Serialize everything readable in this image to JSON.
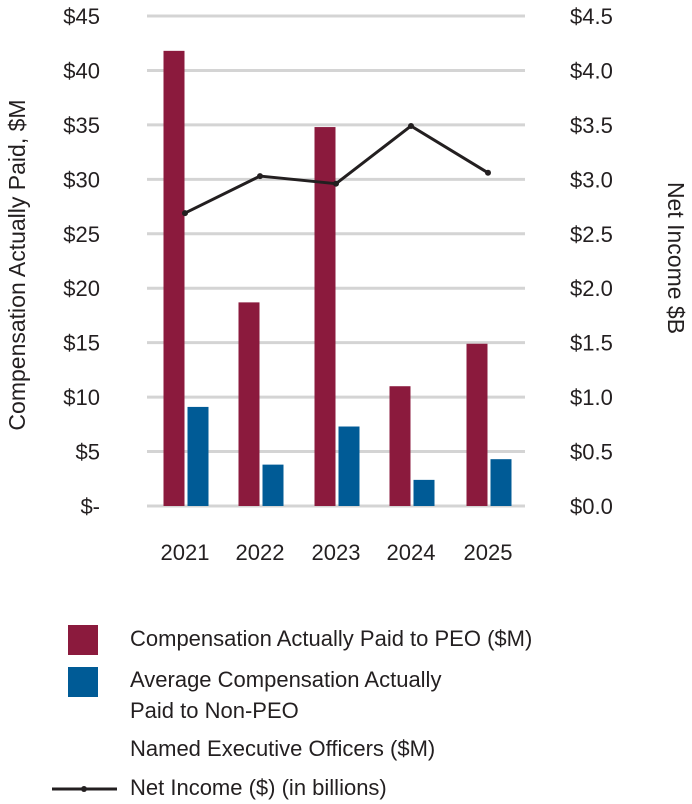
{
  "chart_data": {
    "type": "bar",
    "categories": [
      "2021",
      "2022",
      "2023",
      "2024",
      "2025"
    ],
    "series": [
      {
        "name": "Compensation Actually Paid to PEO ($M)",
        "kind": "bar",
        "axis": "left",
        "color": "#8b1a3d",
        "values": [
          41.8,
          18.7,
          34.8,
          11.0,
          14.9
        ]
      },
      {
        "name": "Average Compensation Actually Paid to Non-PEO Named Executive Officers ($M)",
        "kind": "bar",
        "axis": "left",
        "color": "#005b96",
        "values": [
          9.1,
          3.8,
          7.3,
          2.4,
          4.3
        ]
      },
      {
        "name": "Net Income ($) (in billions)",
        "kind": "line",
        "axis": "right",
        "color": "#231f20",
        "values": [
          2.69,
          3.03,
          2.96,
          3.49,
          3.06
        ]
      }
    ],
    "left_axis": {
      "label": "Compensation Actually Paid, $M",
      "ylim": [
        0,
        45
      ],
      "ticks": [
        {
          "v": 45,
          "label": "$45"
        },
        {
          "v": 40,
          "label": "$40"
        },
        {
          "v": 35,
          "label": "$35"
        },
        {
          "v": 30,
          "label": "$30"
        },
        {
          "v": 25,
          "label": "$25"
        },
        {
          "v": 20,
          "label": "$20"
        },
        {
          "v": 15,
          "label": "$15"
        },
        {
          "v": 10,
          "label": "$10"
        },
        {
          "v": 5,
          "label": "$5"
        },
        {
          "v": 0,
          "label": "$-"
        }
      ]
    },
    "right_axis": {
      "label": "Net Income $B",
      "ylim": [
        0,
        4.5
      ],
      "ticks": [
        {
          "v": 4.5,
          "label": "$4.5"
        },
        {
          "v": 4.0,
          "label": "$4.0"
        },
        {
          "v": 3.5,
          "label": "$3.5"
        },
        {
          "v": 3.0,
          "label": "$3.0"
        },
        {
          "v": 2.5,
          "label": "$2.5"
        },
        {
          "v": 2.0,
          "label": "$2.0"
        },
        {
          "v": 1.5,
          "label": "$1.5"
        },
        {
          "v": 1.0,
          "label": "$1.0"
        },
        {
          "v": 0.5,
          "label": "$0.5"
        },
        {
          "v": 0.0,
          "label": "$0.0"
        }
      ]
    },
    "grid": true,
    "grid_color": "#d4d4d4"
  },
  "legend": {
    "items": [
      {
        "key": "peo",
        "lines": [
          "Compensation Actually Paid to PEO ($M)"
        ]
      },
      {
        "key": "neo",
        "lines": [
          "Average Compensation Actually",
          "Paid to Non-PEO",
          "Named Executive Officers ($M)"
        ]
      },
      {
        "key": "ni",
        "lines": [
          "Net Income ($) (in billions)"
        ]
      }
    ]
  }
}
